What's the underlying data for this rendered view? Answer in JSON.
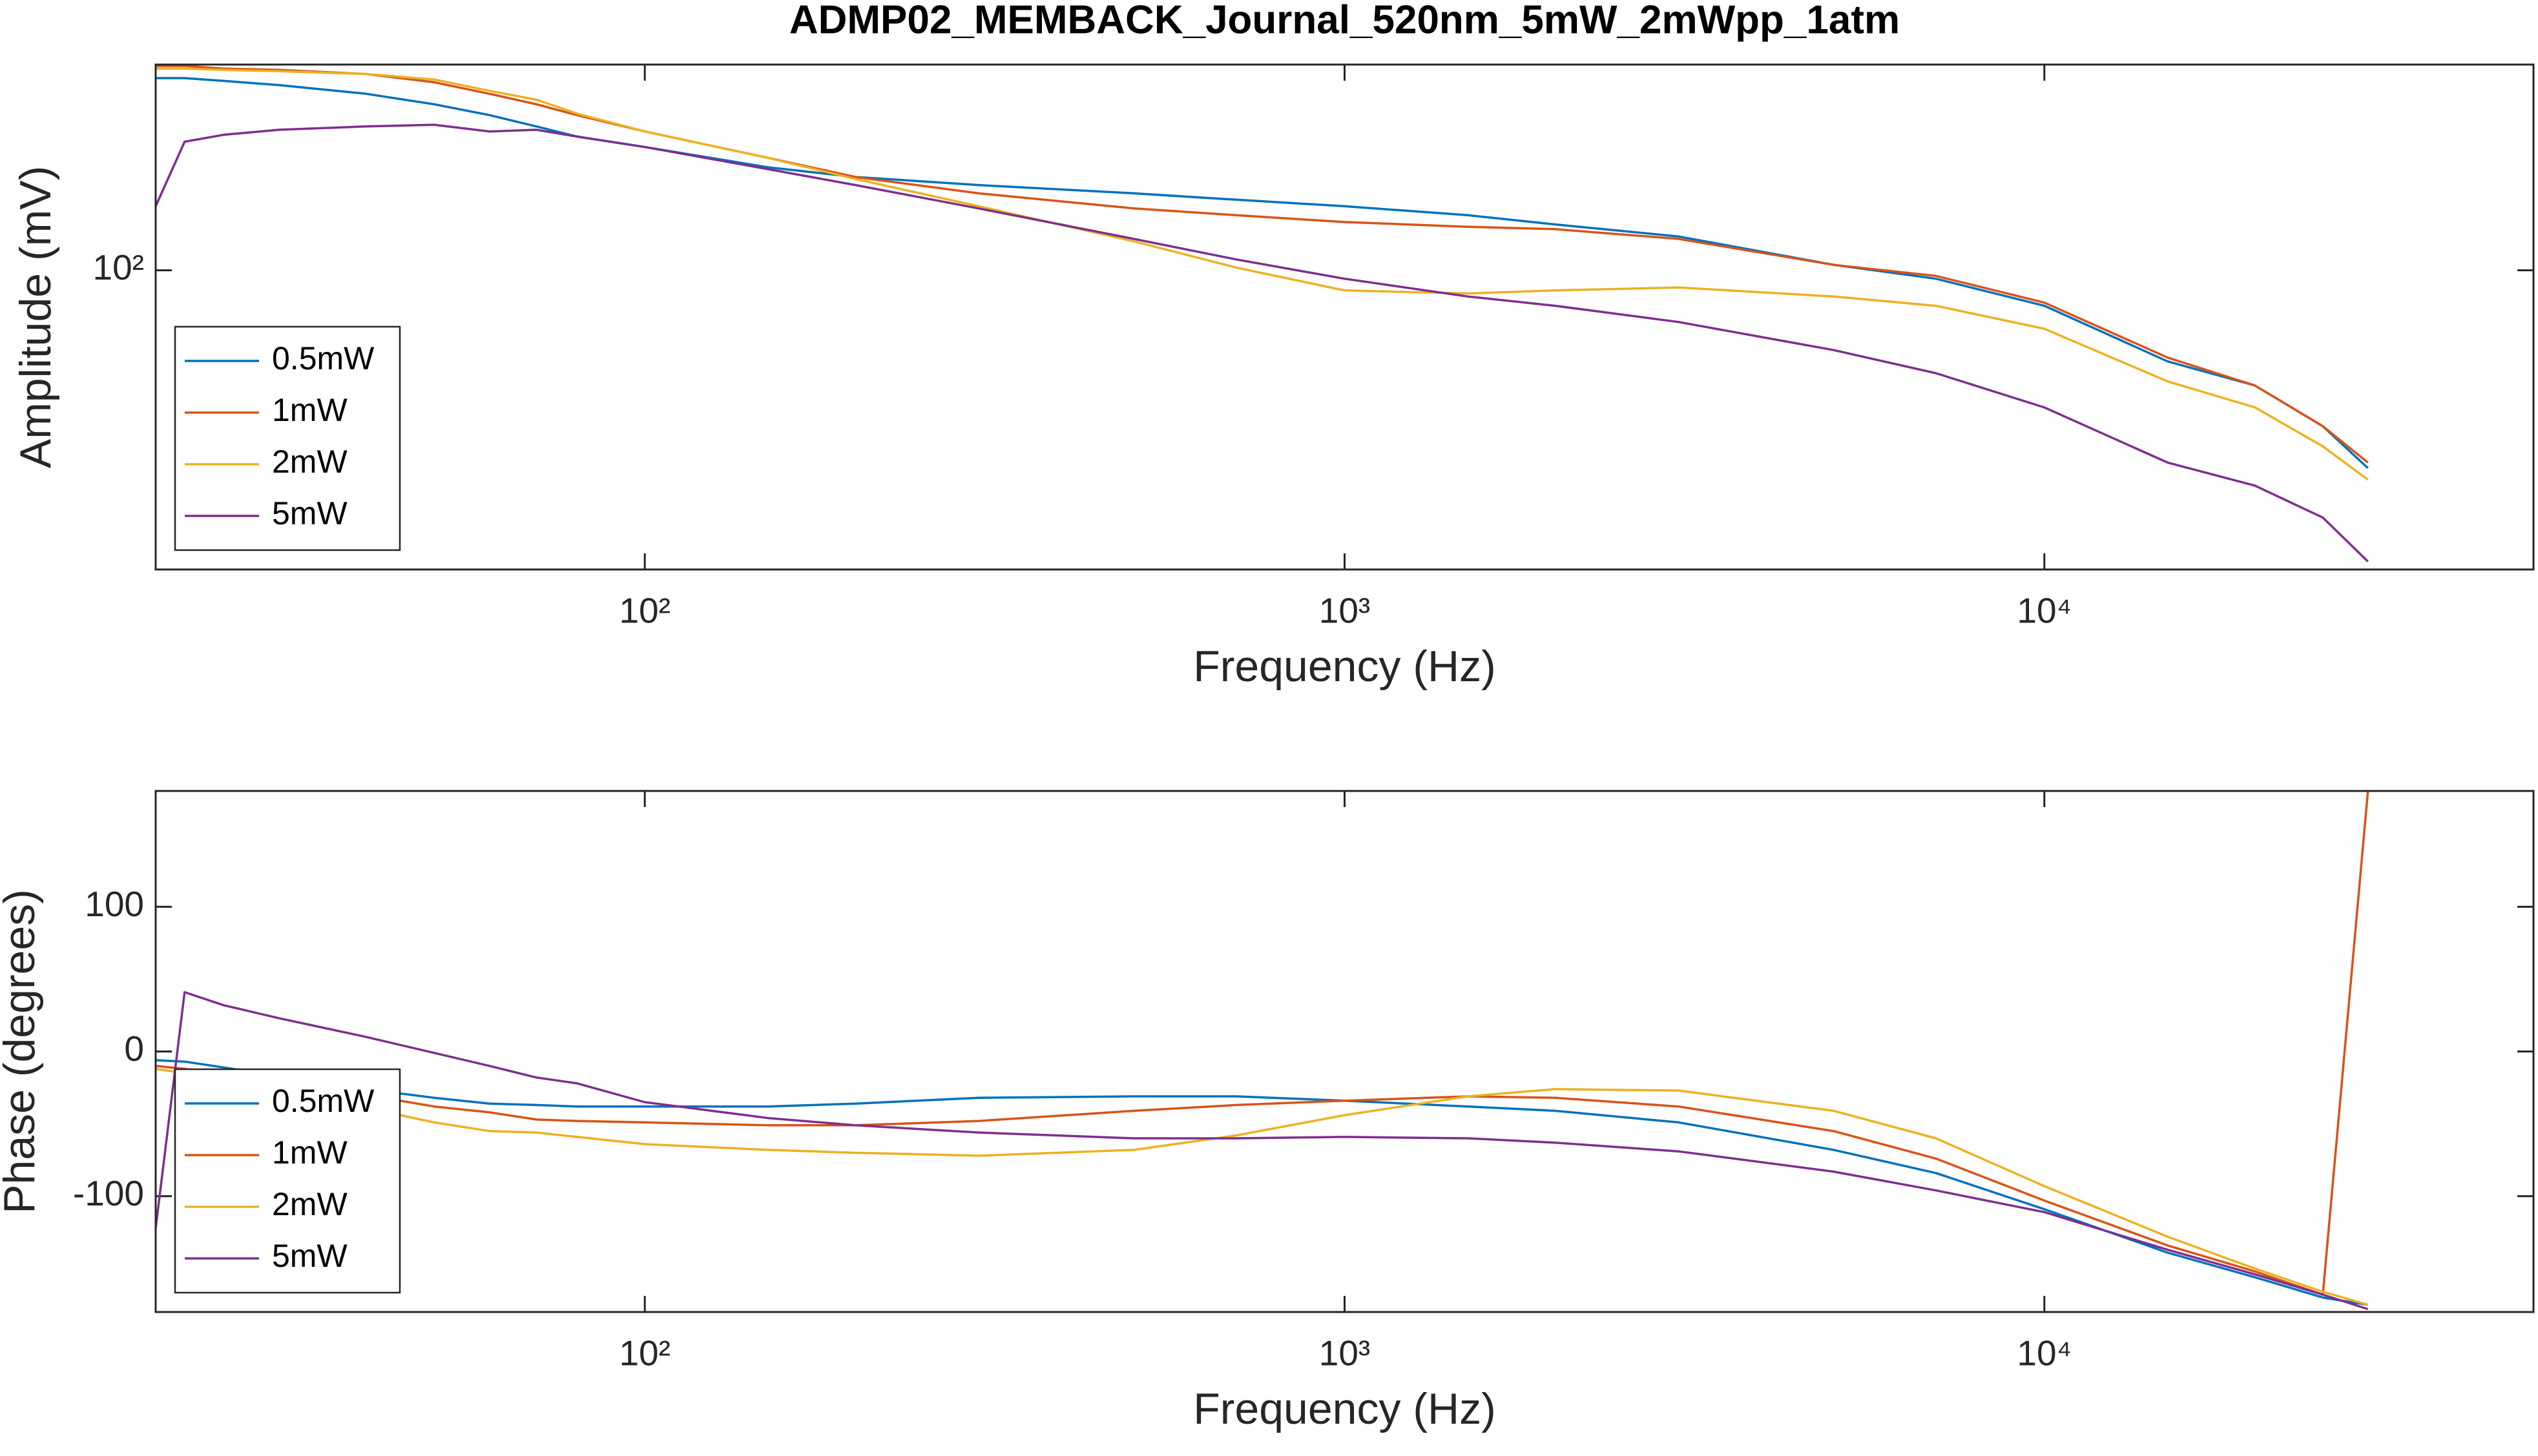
{
  "chart_data": [
    {
      "type": "line",
      "title": "ADMP02_MEMBACK_Journal_520nm_5mW_2mWpp_1atm",
      "xlabel": "Frequency (Hz)",
      "ylabel": "Amplitude (mV)",
      "xlog": true,
      "ylog": true,
      "legend": "southwest",
      "xlim": [
        20,
        50000
      ],
      "ylim": [
        34,
        210
      ],
      "xticks": [
        {
          "value": 100,
          "label": "10²"
        },
        {
          "value": 1000,
          "label": "10³"
        },
        {
          "value": 10000,
          "label": "10⁴"
        }
      ],
      "yticks": [
        {
          "value": 100,
          "label": "10²"
        }
      ],
      "x": [
        20,
        22,
        25,
        30,
        40,
        50,
        60,
        70,
        80,
        100,
        150,
        200,
        300,
        500,
        700,
        1000,
        1500,
        2000,
        3000,
        5000,
        7000,
        10000,
        15000,
        20000,
        25000,
        29000
      ],
      "series": [
        {
          "name": "0.5mW",
          "color": "#0072BD",
          "values": [
            200,
            200,
            198,
            195,
            189,
            182,
            175,
            168,
            162,
            156,
            145,
            140,
            136,
            132,
            129,
            126,
            122,
            118,
            113,
            102,
            97,
            88,
            72,
            66,
            57,
            49
          ]
        },
        {
          "name": "1mW",
          "color": "#D95319",
          "values": [
            209,
            209,
            207,
            206,
            203,
            197,
            189,
            182,
            175,
            165,
            150,
            140,
            132,
            125,
            122,
            119,
            117,
            116,
            112,
            102,
            98,
            89,
            73,
            66,
            57,
            50
          ]
        },
        {
          "name": "2mW",
          "color": "#EDB120",
          "values": [
            207,
            207,
            206,
            205,
            203,
            199,
            191,
            185,
            176,
            165,
            150,
            139,
            126,
            111,
            101,
            93,
            92,
            93,
            94,
            91,
            88,
            81,
            67,
            61,
            53,
            47
          ]
        },
        {
          "name": "5mW",
          "color": "#7E2F8E",
          "values": [
            126,
            159,
            163,
            166,
            168,
            169,
            165,
            166,
            162,
            156,
            144,
            136,
            125,
            112,
            104,
            97,
            91,
            88,
            83,
            75,
            69,
            61,
            50,
            46,
            41,
            35
          ]
        }
      ]
    },
    {
      "type": "line",
      "xlabel": "Frequency (Hz)",
      "ylabel": "Phase (degrees)",
      "xlog": true,
      "ylog": false,
      "legend": "southwest",
      "xlim": [
        20,
        50000
      ],
      "ylim": [
        -180,
        180
      ],
      "xticks": [
        {
          "value": 100,
          "label": "10²"
        },
        {
          "value": 1000,
          "label": "10³"
        },
        {
          "value": 10000,
          "label": "10⁴"
        }
      ],
      "yticks": [
        -100,
        0,
        100
      ],
      "x": [
        20,
        22,
        25,
        30,
        40,
        50,
        60,
        70,
        80,
        100,
        150,
        200,
        300,
        500,
        700,
        1000,
        1500,
        2000,
        3000,
        5000,
        7000,
        10000,
        15000,
        20000,
        25000,
        29000
      ],
      "series": [
        {
          "name": "0.5mW",
          "color": "#0072BD",
          "values": [
            -6,
            -7,
            -11,
            -17,
            -26,
            -32,
            -36,
            -37,
            -38,
            -38,
            -38,
            -36,
            -32,
            -31,
            -31,
            -34,
            -38,
            -41,
            -49,
            -68,
            -84,
            -109,
            -139,
            -156,
            -170,
            -175
          ]
        },
        {
          "name": "1mW",
          "color": "#D95319",
          "values": [
            -10,
            -12,
            -16,
            -21,
            -30,
            -38,
            -42,
            -47,
            -48,
            -49,
            -51,
            -51,
            -48,
            -41,
            -37,
            -34,
            -31,
            -32,
            -38,
            -55,
            -74,
            -103,
            -134,
            -152,
            -168,
            180
          ]
        },
        {
          "name": "2mW",
          "color": "#EDB120",
          "values": [
            -12,
            -15,
            -19,
            -27,
            -39,
            -49,
            -55,
            -56,
            -59,
            -64,
            -68,
            -70,
            -72,
            -68,
            -58,
            -44,
            -31,
            -26,
            -27,
            -41,
            -60,
            -93,
            -128,
            -150,
            -166,
            -175
          ]
        },
        {
          "name": "5mW",
          "color": "#7E2F8E",
          "values": [
            -122,
            41,
            32,
            23,
            10,
            -1,
            -10,
            -18,
            -22,
            -35,
            -46,
            -51,
            -56,
            -60,
            -60,
            -59,
            -60,
            -63,
            -69,
            -83,
            -96,
            -111,
            -137,
            -154,
            -168,
            -178
          ]
        }
      ]
    }
  ]
}
